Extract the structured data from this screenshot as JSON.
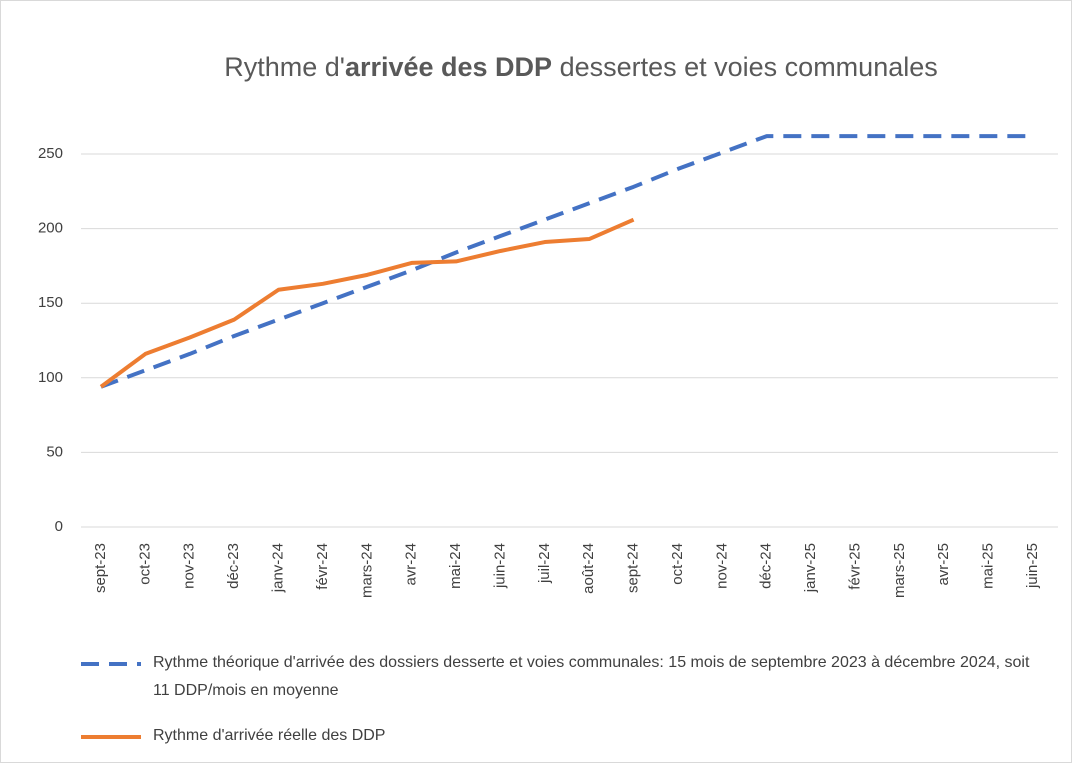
{
  "chart_data": {
    "type": "line",
    "title_parts": [
      {
        "text": "Rythme d'"
      },
      {
        "text": "arrivée des DDP",
        "bold": true
      },
      {
        "text": " dessertes et voies communales"
      }
    ],
    "categories": [
      "sept-23",
      "oct-23",
      "nov-23",
      "déc-23",
      "janv-24",
      "févr-24",
      "mars-24",
      "avr-24",
      "mai-24",
      "juin-24",
      "juil-24",
      "août-24",
      "sept-24",
      "oct-24",
      "nov-24",
      "déc-24",
      "janv-25",
      "févr-25",
      "mars-25",
      "avr-25",
      "mai-25",
      "juin-25"
    ],
    "series": [
      {
        "name": "Rythme théorique d'arrivée des dossiers desserte et voies communales: 15 mois de septembre 2023 à décembre 2024, soit 11 DDP/mois en moyenne",
        "color": "#4472c4",
        "dashed": true,
        "values": [
          94,
          105,
          116,
          128,
          139,
          150,
          161,
          172,
          184,
          195,
          206,
          217,
          228,
          240,
          251,
          262,
          262,
          262,
          262,
          262,
          262,
          262
        ]
      },
      {
        "name": "Rythme d'arrivée réelle des DDP",
        "color": "#ed7d31",
        "dashed": false,
        "values": [
          94,
          116,
          127,
          139,
          159,
          163,
          169,
          177,
          178,
          185,
          191,
          193,
          206,
          null,
          null,
          null,
          null,
          null,
          null,
          null,
          null,
          null
        ]
      }
    ],
    "ylim": [
      0,
      250
    ],
    "yticks": [
      0,
      50,
      100,
      150,
      200,
      250
    ],
    "grid": true,
    "legend": "bottom"
  }
}
